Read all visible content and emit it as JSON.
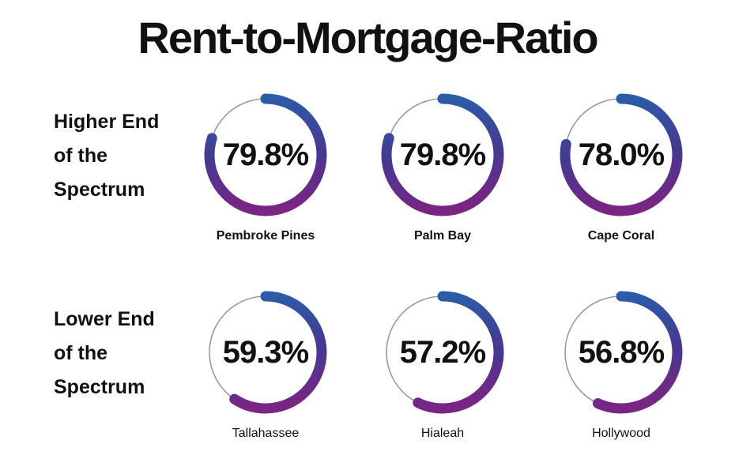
{
  "ui": {
    "title": "Rent-to-Mortgage-Ratio",
    "rows": [
      {
        "label_lines": [
          "Higher End",
          "of the",
          "Spectrum"
        ],
        "donuts": [
          {
            "city": "Pembroke Pines",
            "value_label": "79.8%"
          },
          {
            "city": "Palm Bay",
            "value_label": "79.8%"
          },
          {
            "city": "Cape Coral",
            "value_label": "78.0%"
          }
        ]
      },
      {
        "label_lines": [
          "Lower End",
          "of the",
          "Spectrum"
        ],
        "donuts": [
          {
            "city": "Tallahassee",
            "value_label": "59.3%"
          },
          {
            "city": "Hialeah",
            "value_label": "57.2%"
          },
          {
            "city": "Hollywood",
            "value_label": "56.8%"
          }
        ]
      }
    ]
  },
  "chart_data": {
    "type": "donut",
    "title": "Rent-to-Mortgage-Ratio",
    "unit": "%",
    "groups": [
      {
        "group": "Higher End of the Spectrum",
        "cities": [
          "Pembroke Pines",
          "Palm Bay",
          "Cape Coral"
        ],
        "values": [
          79.8,
          79.8,
          78.0
        ]
      },
      {
        "group": "Lower End of the Spectrum",
        "cities": [
          "Tallahassee",
          "Hialeah",
          "Hollywood"
        ],
        "values": [
          59.3,
          57.2,
          56.8
        ]
      }
    ],
    "value_range": [
      0,
      100
    ],
    "start_angle_deg": 0,
    "direction": "clockwise",
    "ring_gradient": [
      "#7B2483",
      "#45398F",
      "#2B5CA8"
    ],
    "track_color": "#9A9A9A",
    "text_color": "#111111",
    "background": "#FFFFFF"
  }
}
